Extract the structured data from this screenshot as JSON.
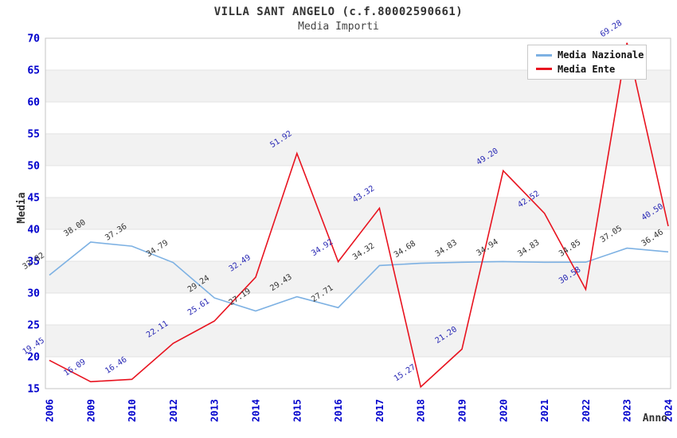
{
  "chart_data": {
    "type": "line",
    "title": "VILLA SANT ANGELO (c.f.80002590661)",
    "subtitle": "Media Importi",
    "xlabel": "Anno",
    "ylabel": "Media",
    "categories": [
      "2006",
      "2009",
      "2010",
      "2012",
      "2013",
      "2014",
      "2015",
      "2016",
      "2017",
      "2018",
      "2019",
      "2020",
      "2021",
      "2022",
      "2023",
      "2024"
    ],
    "series": [
      {
        "name": "Media Nazionale",
        "color": "#7db1e3",
        "label_color": "#333333",
        "values": [
          32.82,
          38.0,
          37.36,
          34.79,
          29.24,
          27.19,
          29.43,
          27.71,
          34.32,
          34.68,
          34.83,
          34.94,
          34.83,
          34.85,
          37.05,
          36.46
        ]
      },
      {
        "name": "Media Ente",
        "color": "#e8131f",
        "label_color": "#2828b4",
        "values": [
          19.45,
          16.09,
          16.46,
          22.11,
          25.61,
          32.49,
          51.92,
          34.92,
          43.32,
          15.27,
          21.2,
          49.2,
          42.52,
          30.58,
          69.28,
          40.5
        ]
      }
    ],
    "ylim": [
      15,
      70
    ],
    "ytick_step": 5,
    "grid": true,
    "legend_position": "top-right",
    "band_color": "#f2f2f2",
    "grid_color": "#e3e3e3",
    "spine_color": "#c6c6c6",
    "tick_label_color": "#0000cc"
  }
}
